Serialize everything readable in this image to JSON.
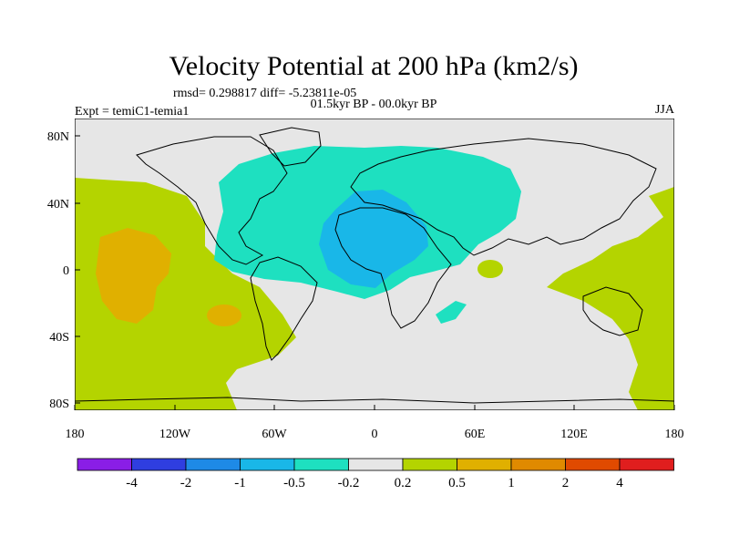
{
  "title": "Velocity Potential at 200 hPa (km2/s)",
  "stats": "rmsd= 0.298817 diff= -5.23811e-05",
  "experiment": "Expt = temiC1-temia1",
  "period": "01.5kyr BP - 00.0kyr BP",
  "season": "JJA",
  "lat_ticks": [
    "80N",
    "40N",
    "0",
    "40S",
    "80S"
  ],
  "lon_ticks": [
    "180",
    "120W",
    "60W",
    "0",
    "60E",
    "120E",
    "180"
  ],
  "colorbar": {
    "colors": [
      "#8a1ee6",
      "#2f3ee0",
      "#1e8ae6",
      "#19b7e8",
      "#1ee0c0",
      "#e6e6e6",
      "#b4d400",
      "#e0b000",
      "#e08a00",
      "#e04a00",
      "#e01e1e"
    ],
    "labels": [
      "-4",
      "-2",
      "-1",
      "-0.5",
      "-0.2",
      "0.2",
      "0.5",
      "1",
      "2",
      "4"
    ]
  },
  "colors": {
    "background_field": "#e6e6e6",
    "neg_weak": "#1ee0c0",
    "neg_mid": "#19b7e8",
    "pos_weak": "#b4d400",
    "pos_mid": "#e0b000"
  }
}
